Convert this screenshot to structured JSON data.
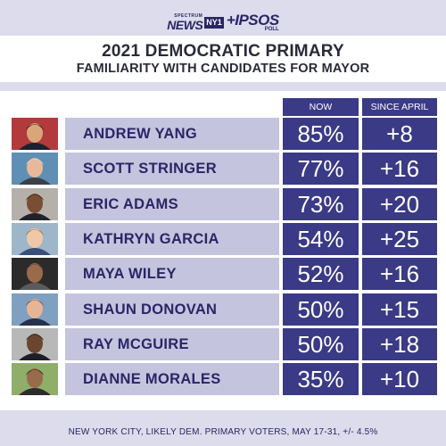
{
  "brand": {
    "spectrum": "SPECTRUM",
    "news": "NEWS",
    "ny": "NY1",
    "ipsos": "+IPSOS",
    "poll": "POLL"
  },
  "header": {
    "title": "2021 DEMOCRATIC PRIMARY",
    "subtitle": "FAMILIARITY WITH CANDIDATES FOR MAYOR"
  },
  "columns": {
    "now": "NOW",
    "since": "SINCE APRIL"
  },
  "footer": {
    "note": "NEW YORK CITY, LIKELY DEM. PRIMARY VOTERS, MAY 17-31, +/- 4.5%"
  },
  "colors": {
    "page_bg": "#dcdcec",
    "name_bar": "#c4c4de",
    "value_box": "#3a3a86",
    "name_text": "#2b2566"
  },
  "chart_data": {
    "type": "table",
    "title": "2021 DEMOCRATIC PRIMARY",
    "subtitle": "FAMILIARITY WITH CANDIDATES FOR MAYOR",
    "columns": [
      "NOW",
      "SINCE APRIL"
    ],
    "rows": [
      {
        "name": "ANDREW YANG",
        "now": "85%",
        "since": "+8",
        "photo": "andrew-yang-photo"
      },
      {
        "name": "SCOTT STRINGER",
        "now": "77%",
        "since": "+16",
        "photo": "scott-stringer-photo"
      },
      {
        "name": "ERIC ADAMS",
        "now": "73%",
        "since": "+20",
        "photo": "eric-adams-photo"
      },
      {
        "name": "KATHRYN GARCIA",
        "now": "54%",
        "since": "+25",
        "photo": "kathryn-garcia-photo"
      },
      {
        "name": "MAYA WILEY",
        "now": "52%",
        "since": "+16",
        "photo": "maya-wiley-photo"
      },
      {
        "name": "SHAUN DONOVAN",
        "now": "50%",
        "since": "+15",
        "photo": "shaun-donovan-photo"
      },
      {
        "name": "RAY MCGUIRE",
        "now": "50%",
        "since": "+18",
        "photo": "ray-mcguire-photo"
      },
      {
        "name": "DIANNE MORALES",
        "now": "35%",
        "since": "+10",
        "photo": "dianne-morales-photo"
      }
    ],
    "note": "NEW YORK CITY, LIKELY DEM. PRIMARY VOTERS, MAY 17-31, +/- 4.5%"
  }
}
